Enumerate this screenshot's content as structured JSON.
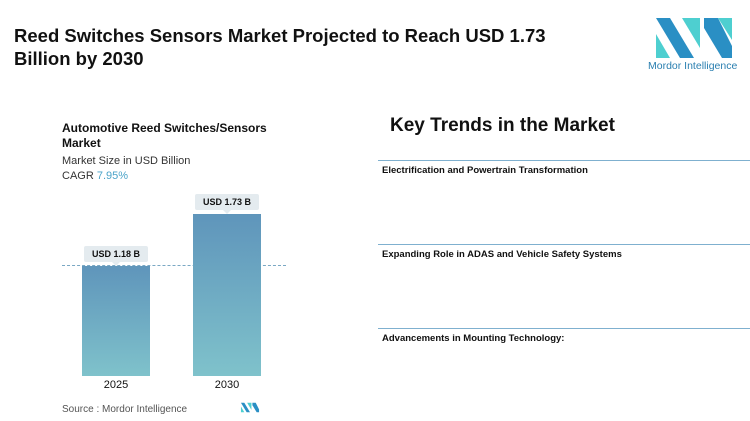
{
  "header": {
    "title": " Reed Switches Sensors Market Projected to Reach USD 1.73 Billion by 2030",
    "logo_text": "Mordor Intelligence"
  },
  "chart": {
    "title": "Automotive Reed Switches/Sensors Market",
    "subtitle": "Market Size in USD Billion",
    "cagr_label": "CAGR",
    "cagr_value": "7.95%",
    "source_label": "Source :",
    "source_value": "Mordor Intelligence"
  },
  "chart_data": {
    "type": "bar",
    "categories": [
      "2025",
      "2030"
    ],
    "values": [
      1.18,
      1.73
    ],
    "data_labels": [
      "USD 1.18 B",
      "USD 1.73 B"
    ],
    "title": "Automotive Reed Switches/Sensors Market",
    "ylabel": "Market Size in USD Billion",
    "colors": [
      "#5f95bb",
      "#7fc2cb"
    ],
    "reference_line": "dashed at 2025 value",
    "grid": false
  },
  "trends": {
    "title": "Key Trends in the Market",
    "items": [
      "Electrification and Powertrain Transformation",
      "Expanding Role in ADAS and Vehicle Safety Systems",
      "Advancements in Mounting Technology:"
    ]
  }
}
